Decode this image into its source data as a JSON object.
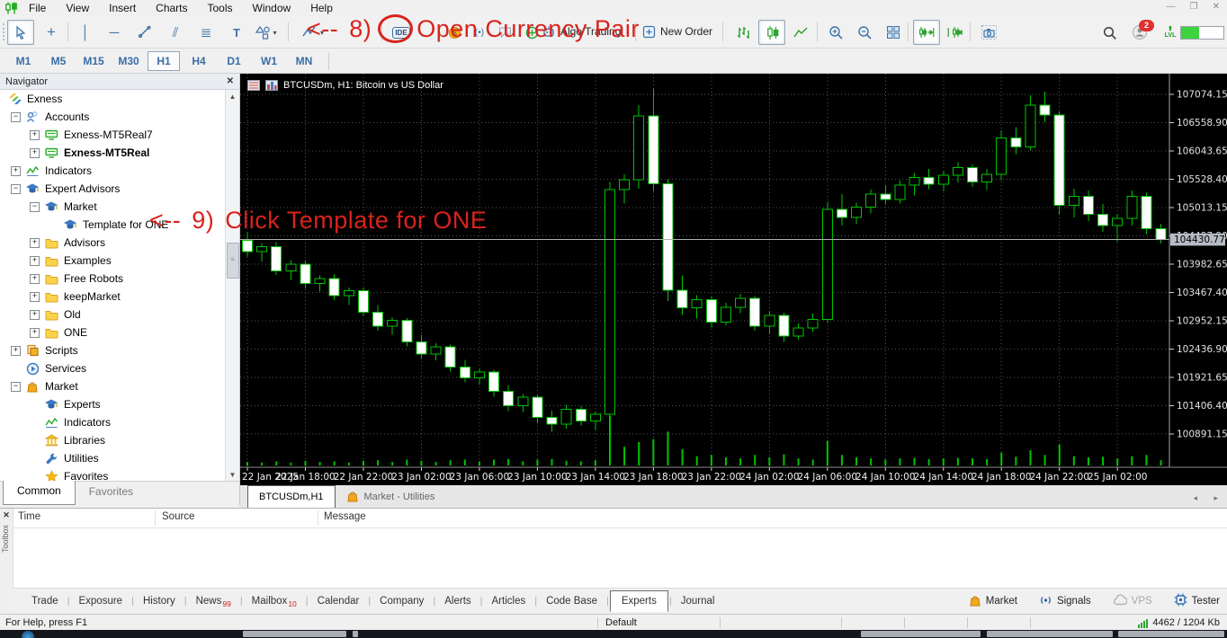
{
  "titlebar": {
    "menus": [
      "File",
      "View",
      "Insert",
      "Charts",
      "Tools",
      "Window",
      "Help"
    ],
    "window_buttons": {
      "minimize": "—",
      "restore": "❐",
      "close": "✕"
    }
  },
  "toolbar": {
    "algo_trading_label": "Algo Trading",
    "new_order_label": "New Order",
    "ide_label": "IDE",
    "lvl_label": "LVL",
    "notification_count": "2",
    "progress_percent": 42
  },
  "timeframe_bar": {
    "items": [
      "M1",
      "M5",
      "M15",
      "M30",
      "H1",
      "H4",
      "D1",
      "W1",
      "MN"
    ],
    "active": "H1"
  },
  "navigator": {
    "title": "Navigator",
    "close_glyph": "✕",
    "tree": [
      {
        "label": "Exness",
        "icon": "exness",
        "level": 0,
        "box": null
      },
      {
        "label": "Accounts",
        "icon": "accounts",
        "level": 1,
        "box": "minus"
      },
      {
        "label": "Exness-MT5Real7",
        "icon": "account",
        "level": 2,
        "box": "plus"
      },
      {
        "label": "Exness-MT5Real",
        "icon": "account",
        "level": 2,
        "box": "plus",
        "bold": true
      },
      {
        "label": "Indicators",
        "icon": "indicator",
        "level": 1,
        "box": "plus"
      },
      {
        "label": "Expert Advisors",
        "icon": "cap",
        "level": 1,
        "box": "minus"
      },
      {
        "label": "Market",
        "icon": "cap",
        "level": 2,
        "box": "minus"
      },
      {
        "label": "Template for ONE",
        "icon": "cap",
        "level": 3,
        "box": null
      },
      {
        "label": "Advisors",
        "icon": "folder",
        "level": 2,
        "box": "plus"
      },
      {
        "label": "Examples",
        "icon": "folder",
        "level": 2,
        "box": "plus"
      },
      {
        "label": "Free Robots",
        "icon": "folder",
        "level": 2,
        "box": "plus"
      },
      {
        "label": "keepMarket",
        "icon": "folder",
        "level": 2,
        "box": "plus"
      },
      {
        "label": "Old",
        "icon": "folder",
        "level": 2,
        "box": "plus"
      },
      {
        "label": "ONE",
        "icon": "folder",
        "level": 2,
        "box": "plus"
      },
      {
        "label": "Scripts",
        "icon": "scripts",
        "level": 1,
        "box": "plus"
      },
      {
        "label": "Services",
        "icon": "services",
        "level": 1,
        "box": null
      },
      {
        "label": "Market",
        "icon": "bag",
        "level": 1,
        "box": "minus"
      },
      {
        "label": "Experts",
        "icon": "cap",
        "level": 2,
        "box": null
      },
      {
        "label": "Indicators",
        "icon": "indicator",
        "level": 2,
        "box": null
      },
      {
        "label": "Libraries",
        "icon": "library",
        "level": 2,
        "box": null
      },
      {
        "label": "Utilities",
        "icon": "wrench",
        "level": 2,
        "box": null
      },
      {
        "label": "Favorites",
        "icon": "star",
        "level": 2,
        "box": null
      }
    ],
    "tabs": [
      {
        "label": "Common",
        "active": true
      },
      {
        "label": "Favorites",
        "active": false
      }
    ]
  },
  "annotations": {
    "step8": {
      "arrow": "<--",
      "num": "8)",
      "text": "Open Currency Pair"
    },
    "step9": {
      "arrow": "<--",
      "num": "9)",
      "text": "Click Template for ONE"
    }
  },
  "chart": {
    "title": "BTCUSDm, H1:  Bitcoin vs US Dollar",
    "current_price": "104430.77"
  },
  "chart_tabs": {
    "tabs": [
      {
        "label": "BTCUSDm,H1",
        "active": true,
        "icon": null
      },
      {
        "label": "Market - Utilities",
        "active": false,
        "icon": "bag"
      }
    ],
    "scroll_arrows": "◂ ▸"
  },
  "chart_data": {
    "type": "candlestick",
    "symbol": "BTCUSDm",
    "timeframe": "H1",
    "title": "Bitcoin vs US Dollar",
    "price_axis_labels": [
      "107074.15",
      "106558.90",
      "106043.65",
      "105528.40",
      "105013.15",
      "104497.90",
      "103982.65",
      "103467.40",
      "102952.15",
      "102436.90",
      "101921.65",
      "101406.40",
      "100891.15"
    ],
    "axis_top": 107074.15,
    "axis_step": 515.25,
    "current_price": 104430.77,
    "x_labels": [
      "22 Jan 2025",
      "22 Jan 18:00",
      "22 Jan 22:00",
      "23 Jan 02:00",
      "23 Jan 06:00",
      "23 Jan 10:00",
      "23 Jan 14:00",
      "23 Jan 18:00",
      "23 Jan 22:00",
      "24 Jan 02:00",
      "24 Jan 06:00",
      "24 Jan 10:00",
      "24 Jan 14:00",
      "24 Jan 18:00",
      "24 Jan 22:00",
      "25 Jan 02:00"
    ],
    "ohlc": [
      [
        104420,
        104560,
        104120,
        104210
      ],
      [
        104210,
        104370,
        104030,
        104300
      ],
      [
        104300,
        104380,
        103790,
        103860
      ],
      [
        103860,
        104060,
        103700,
        103980
      ],
      [
        103980,
        104050,
        103540,
        103630
      ],
      [
        103630,
        103780,
        103480,
        103720
      ],
      [
        103720,
        103800,
        103330,
        103410
      ],
      [
        103410,
        103560,
        103240,
        103500
      ],
      [
        103500,
        103560,
        103030,
        103110
      ],
      [
        103110,
        103240,
        102770,
        102850
      ],
      [
        102850,
        103020,
        102700,
        102960
      ],
      [
        102960,
        103000,
        102490,
        102570
      ],
      [
        102570,
        102700,
        102260,
        102350
      ],
      [
        102350,
        102540,
        102230,
        102480
      ],
      [
        102480,
        102520,
        102030,
        102110
      ],
      [
        102110,
        102240,
        101830,
        101910
      ],
      [
        101910,
        102080,
        101790,
        102020
      ],
      [
        102020,
        102060,
        101570,
        101670
      ],
      [
        101670,
        101780,
        101310,
        101410
      ],
      [
        101410,
        101620,
        101290,
        101560
      ],
      [
        101560,
        101600,
        101090,
        101190
      ],
      [
        101190,
        101320,
        100930,
        101070
      ],
      [
        101070,
        101420,
        100990,
        101340
      ],
      [
        101340,
        101400,
        101050,
        101130
      ],
      [
        101130,
        101300,
        100960,
        101250
      ],
      [
        101250,
        105480,
        101170,
        105340
      ],
      [
        105340,
        105620,
        105090,
        105520
      ],
      [
        105520,
        106880,
        105360,
        106680
      ],
      [
        106680,
        107180,
        105310,
        105450
      ],
      [
        105450,
        105530,
        103310,
        103510
      ],
      [
        103510,
        103780,
        103060,
        103190
      ],
      [
        103190,
        103420,
        102990,
        103340
      ],
      [
        103340,
        103400,
        102830,
        102930
      ],
      [
        102930,
        103280,
        102870,
        103200
      ],
      [
        103200,
        103440,
        103090,
        103360
      ],
      [
        103360,
        103400,
        102770,
        102850
      ],
      [
        102850,
        103120,
        102710,
        103050
      ],
      [
        103050,
        103100,
        102570,
        102670
      ],
      [
        102670,
        102900,
        102610,
        102820
      ],
      [
        102820,
        103080,
        102750,
        102980
      ],
      [
        102980,
        105120,
        102910,
        104980
      ],
      [
        104980,
        105260,
        104690,
        104830
      ],
      [
        104830,
        105100,
        104710,
        105020
      ],
      [
        105020,
        105340,
        104910,
        105260
      ],
      [
        105260,
        105420,
        105070,
        105160
      ],
      [
        105160,
        105500,
        105090,
        105420
      ],
      [
        105420,
        105640,
        105230,
        105560
      ],
      [
        105560,
        105720,
        105350,
        105440
      ],
      [
        105440,
        105680,
        105310,
        105600
      ],
      [
        105600,
        105840,
        105470,
        105740
      ],
      [
        105740,
        105800,
        105390,
        105480
      ],
      [
        105480,
        105720,
        105330,
        105620
      ],
      [
        105620,
        106420,
        105510,
        106280
      ],
      [
        106280,
        106480,
        105990,
        106120
      ],
      [
        106120,
        107060,
        106050,
        106880
      ],
      [
        106880,
        107120,
        106570,
        106700
      ],
      [
        106700,
        106760,
        104890,
        105050
      ],
      [
        105050,
        105360,
        104830,
        105220
      ],
      [
        105220,
        105320,
        104770,
        104890
      ],
      [
        104890,
        105080,
        104570,
        104690
      ],
      [
        104690,
        104900,
        104390,
        104820
      ],
      [
        104820,
        105320,
        104690,
        105220
      ],
      [
        105220,
        105280,
        104530,
        104630
      ],
      [
        104630,
        104720,
        104360,
        104431
      ]
    ],
    "volume": [
      6,
      5,
      7,
      5,
      8,
      6,
      7,
      5,
      8,
      9,
      6,
      10,
      8,
      6,
      9,
      10,
      7,
      10,
      11,
      7,
      10,
      11,
      8,
      7,
      9,
      85,
      32,
      40,
      45,
      58,
      28,
      16,
      18,
      14,
      12,
      18,
      14,
      19,
      12,
      10,
      42,
      18,
      14,
      12,
      10,
      12,
      13,
      11,
      12,
      13,
      12,
      11,
      22,
      15,
      26,
      18,
      36,
      16,
      14,
      15,
      12,
      16,
      18,
      9
    ],
    "colors": {
      "bull_fill": "#000000",
      "bear_fill": "#ffffff",
      "stroke": "#00c400",
      "grid": "#555555",
      "background": "#000000",
      "price_line": "#b0b0b0",
      "price_tag_bg": "#b6bcc6"
    }
  },
  "toolbox": {
    "side_label": "Toolbox",
    "close_glyph": "✕",
    "columns": [
      "Time",
      "Source",
      "Message"
    ],
    "tabs": [
      {
        "label": "Trade"
      },
      {
        "label": "Exposure"
      },
      {
        "label": "History"
      },
      {
        "label": "News",
        "badge": "99"
      },
      {
        "label": "Mailbox",
        "badge": "10"
      },
      {
        "label": "Calendar"
      },
      {
        "label": "Company"
      },
      {
        "label": "Alerts"
      },
      {
        "label": "Articles"
      },
      {
        "label": "Code Base"
      },
      {
        "label": "Experts",
        "active": true
      },
      {
        "label": "Journal"
      }
    ],
    "right_buttons": [
      {
        "label": "Market",
        "icon": "bag"
      },
      {
        "label": "Signals",
        "icon": "signal"
      },
      {
        "label": "VPS",
        "icon": "cloud",
        "disabled": true
      },
      {
        "label": "Tester",
        "icon": "chip"
      }
    ]
  },
  "statusbar": {
    "help_text": "For Help, press F1",
    "profile": "Default",
    "bandwidth": "4462 / 1204 Kb"
  }
}
